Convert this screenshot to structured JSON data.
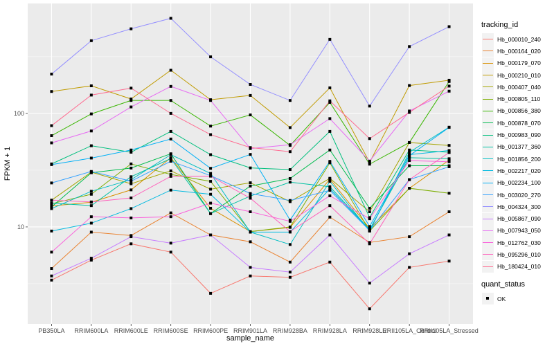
{
  "chart_data": {
    "type": "line",
    "title": "",
    "xlabel": "sample_name",
    "ylabel": "FPKM + 1",
    "yscale": "log10",
    "ylim": [
      1.4,
      930
    ],
    "yticks": [
      10,
      100
    ],
    "ytick_labels": [
      "10",
      "100"
    ],
    "grid": true,
    "legend_position": "right",
    "categories": [
      "PB350LA",
      "RRIM600LA",
      "RRIM600LE",
      "RRIM600SE",
      "RRIM600PE",
      "RRIM901LA",
      "RRIM928BA",
      "RRIM928LA",
      "RRIM928LE",
      "RRII105LA_Control",
      "RRII105LA_Stressed"
    ],
    "series": [
      {
        "name": "Hb_000010_240",
        "color": "#F8766D",
        "values": [
          3.4,
          5.1,
          7.1,
          6.0,
          2.6,
          3.7,
          3.6,
          4.9,
          1.9,
          4.4,
          5.0
        ]
      },
      {
        "name": "Hb_000164_020",
        "color": "#EA8331",
        "values": [
          4.3,
          9.0,
          8.4,
          13.3,
          8.5,
          7.4,
          4.9,
          12.2,
          7.3,
          8.2,
          13.6
        ]
      },
      {
        "name": "Hb_000179_070",
        "color": "#D89000",
        "values": [
          15.3,
          16.5,
          21.2,
          40.7,
          14.6,
          9.1,
          9.9,
          26.4,
          9.7,
          21.9,
          38.8
        ]
      },
      {
        "name": "Hb_000210_010",
        "color": "#C09B00",
        "values": [
          156,
          175,
          134,
          240,
          132,
          144,
          75,
          168,
          37,
          176,
          196
        ]
      },
      {
        "name": "Hb_000407_040",
        "color": "#A3A500",
        "values": [
          17.2,
          30.4,
          24.0,
          31.2,
          21.5,
          24.5,
          16.7,
          26.8,
          13.6,
          55.4,
          52.2
        ]
      },
      {
        "name": "Hb_000805_110",
        "color": "#7CAE00",
        "values": [
          16.0,
          19.4,
          35.9,
          29.0,
          25.2,
          9.1,
          10.0,
          36.7,
          9.2,
          21.9,
          19.8
        ]
      },
      {
        "name": "Hb_000856_380",
        "color": "#39B600",
        "values": [
          63.7,
          99.0,
          130,
          130,
          77.3,
          97.0,
          52.2,
          125,
          35.7,
          55.4,
          191
        ]
      },
      {
        "name": "Hb_000878_070",
        "color": "#00BB4E",
        "values": [
          15.0,
          30.0,
          33.0,
          44.1,
          13.1,
          22.9,
          26.7,
          47.6,
          14.6,
          34.6,
          34.6
        ]
      },
      {
        "name": "Hb_000983_090",
        "color": "#00BF7D",
        "values": [
          35.9,
          51.9,
          45.5,
          69.4,
          43.3,
          33.1,
          32.0,
          69.4,
          12.1,
          47.6,
          45.5
        ]
      },
      {
        "name": "Hb_001377_360",
        "color": "#00C1A3",
        "values": [
          16.2,
          15.4,
          27.7,
          40.0,
          13.1,
          18.7,
          24.8,
          22.6,
          9.5,
          40.7,
          39.9
        ]
      },
      {
        "name": "Hb_001856_200",
        "color": "#00BFC4",
        "values": [
          14.5,
          20.6,
          26.1,
          43.3,
          29.6,
          9.0,
          7.0,
          25.2,
          9.2,
          45.5,
          75.6
        ]
      },
      {
        "name": "Hb_002217_020",
        "color": "#00BAE0",
        "values": [
          9.2,
          10.8,
          14.5,
          21.1,
          19.4,
          9.0,
          9.0,
          21.7,
          9.4,
          43.3,
          47.1
        ]
      },
      {
        "name": "Hb_002234_100",
        "color": "#00B0F6",
        "values": [
          35.4,
          40.4,
          47.6,
          59.5,
          32.8,
          43.5,
          11.5,
          37.8,
          10.1,
          42.4,
          75.3
        ]
      },
      {
        "name": "Hb_003020_270",
        "color": "#35A2FF",
        "values": [
          24.4,
          30.8,
          25.3,
          37.9,
          28.3,
          19.7,
          17.1,
          21.0,
          9.3,
          26.1,
          33.9
        ]
      },
      {
        "name": "Hb_004324_300",
        "color": "#9590FF",
        "values": [
          222,
          437,
          556,
          688,
          315,
          180,
          130,
          449,
          116,
          388,
          581
        ]
      },
      {
        "name": "Hb_005867_090",
        "color": "#C77CFF",
        "values": [
          3.7,
          5.3,
          8.2,
          7.2,
          8.5,
          4.4,
          4.0,
          8.5,
          3.2,
          5.8,
          8.5
        ]
      },
      {
        "name": "Hb_007943_050",
        "color": "#E76BF3",
        "values": [
          55,
          70,
          114,
          173,
          130,
          49,
          53,
          90,
          38,
          105,
          157
        ]
      },
      {
        "name": "Hb_012762_030",
        "color": "#FA62DB",
        "values": [
          6.0,
          12.3,
          12.0,
          12.3,
          16.2,
          13.6,
          11.2,
          18.8,
          11.8,
          38.4,
          37.5
        ]
      },
      {
        "name": "Hb_095296_010",
        "color": "#FF62BC",
        "values": [
          17.2,
          16.6,
          18.0,
          27.9,
          28.0,
          17.9,
          9.1,
          15.4,
          7.1,
          26.1,
          45.2
        ]
      },
      {
        "name": "Hb_180424_010",
        "color": "#FF6C91",
        "values": [
          78,
          145,
          167,
          100,
          65,
          50,
          46,
          129,
          60,
          102,
          174
        ]
      }
    ],
    "legends": [
      {
        "title": "tracking_id"
      },
      {
        "title": "quant_status",
        "items": [
          "OK"
        ]
      }
    ]
  }
}
